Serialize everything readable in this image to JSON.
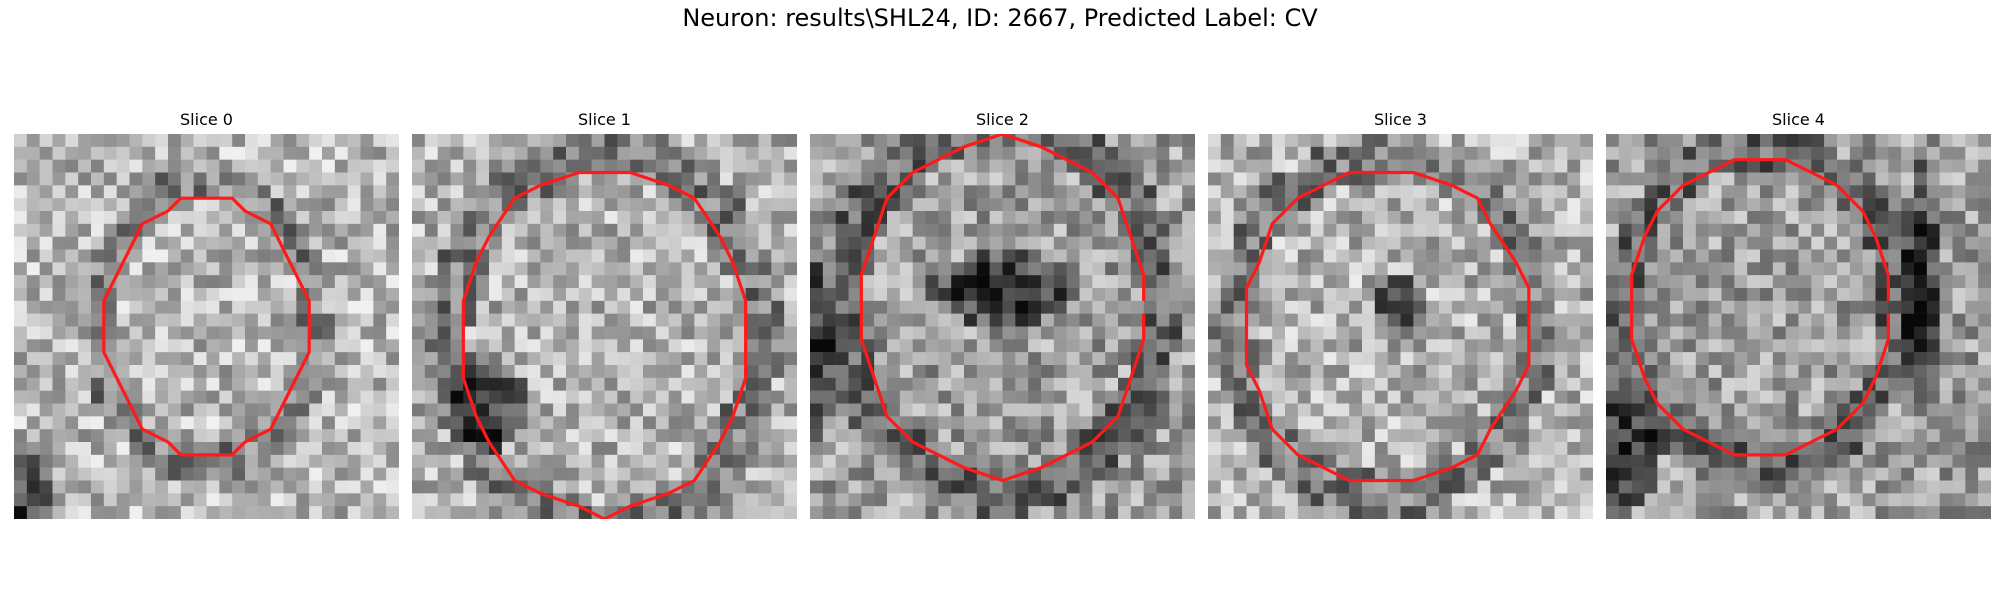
{
  "figure": {
    "title": "Neuron: results\\SHL24, ID: 2667, Predicted Label: CV"
  },
  "slices": [
    {
      "title": "Slice 0",
      "icon": "neuron-slice-image"
    },
    {
      "title": "Slice 1",
      "icon": "neuron-slice-image"
    },
    {
      "title": "Slice 2",
      "icon": "neuron-slice-image"
    },
    {
      "title": "Slice 3",
      "icon": "neuron-slice-image"
    },
    {
      "title": "Slice 4",
      "icon": "neuron-slice-image"
    }
  ],
  "colors": {
    "contour": "#ff1a1a"
  }
}
